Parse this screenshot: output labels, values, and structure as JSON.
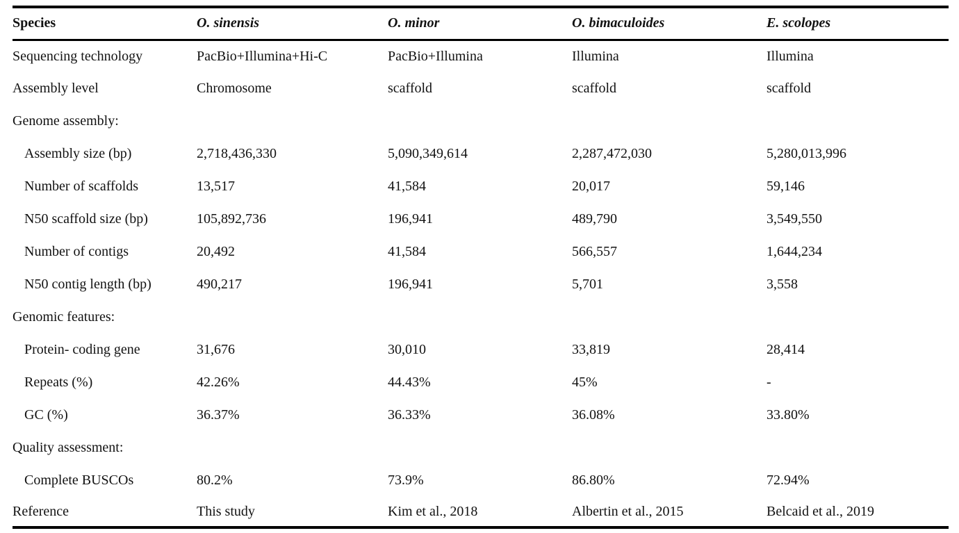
{
  "table": {
    "columns": [
      {
        "label": "Species",
        "italic": false
      },
      {
        "label": "O. sinensis",
        "italic": true
      },
      {
        "label": "O. minor",
        "italic": true
      },
      {
        "label": "O. bimaculoides",
        "italic": true
      },
      {
        "label": "E. scolopes",
        "italic": true
      }
    ],
    "rows": [
      {
        "label": "Sequencing technology",
        "indent": false,
        "section": false,
        "values": [
          "PacBio+Illumina+Hi-C",
          "PacBio+Illumina",
          "Illumina",
          "Illumina"
        ]
      },
      {
        "label": "Assembly level",
        "indent": false,
        "section": false,
        "values": [
          "Chromosome",
          "scaffold",
          "scaffold",
          "scaffold"
        ]
      },
      {
        "label": "Genome assembly:",
        "indent": false,
        "section": true,
        "values": [
          "",
          "",
          "",
          ""
        ]
      },
      {
        "label": "Assembly size (bp)",
        "indent": true,
        "section": false,
        "values": [
          "2,718,436,330",
          "5,090,349,614",
          "2,287,472,030",
          "5,280,013,996"
        ]
      },
      {
        "label": "Number of scaffolds",
        "indent": true,
        "section": false,
        "values": [
          "13,517",
          "41,584",
          "20,017",
          "59,146"
        ]
      },
      {
        "label": "N50 scaffold size (bp)",
        "indent": true,
        "section": false,
        "values": [
          "105,892,736",
          "196,941",
          "489,790",
          "3,549,550"
        ]
      },
      {
        "label": "Number of contigs",
        "indent": true,
        "section": false,
        "values": [
          "20,492",
          "41,584",
          "566,557",
          "1,644,234"
        ]
      },
      {
        "label": "N50 contig length (bp)",
        "indent": true,
        "section": false,
        "values": [
          "490,217",
          "196,941",
          "5,701",
          "3,558"
        ]
      },
      {
        "label": "Genomic features:",
        "indent": false,
        "section": true,
        "values": [
          "",
          "",
          "",
          ""
        ]
      },
      {
        "label": "Protein- coding gene",
        "indent": true,
        "section": false,
        "values": [
          "31,676",
          "30,010",
          "33,819",
          "28,414"
        ]
      },
      {
        "label": "Repeats (%)",
        "indent": true,
        "section": false,
        "values": [
          "42.26%",
          "44.43%",
          "45%",
          "-"
        ]
      },
      {
        "label": "GC (%)",
        "indent": true,
        "section": false,
        "values": [
          "36.37%",
          "36.33%",
          "36.08%",
          "33.80%"
        ]
      },
      {
        "label": "Quality assessment:",
        "indent": false,
        "section": true,
        "values": [
          "",
          "",
          "",
          ""
        ]
      },
      {
        "label": "Complete BUSCOs",
        "indent": true,
        "section": false,
        "values": [
          "80.2%",
          "73.9%",
          "86.80%",
          "72.94%"
        ]
      },
      {
        "label": "Reference",
        "indent": false,
        "section": false,
        "values": [
          "This study",
          "Kim et al., 2018",
          "Albertin et al., 2015",
          "Belcaid et al., 2019"
        ]
      }
    ]
  }
}
